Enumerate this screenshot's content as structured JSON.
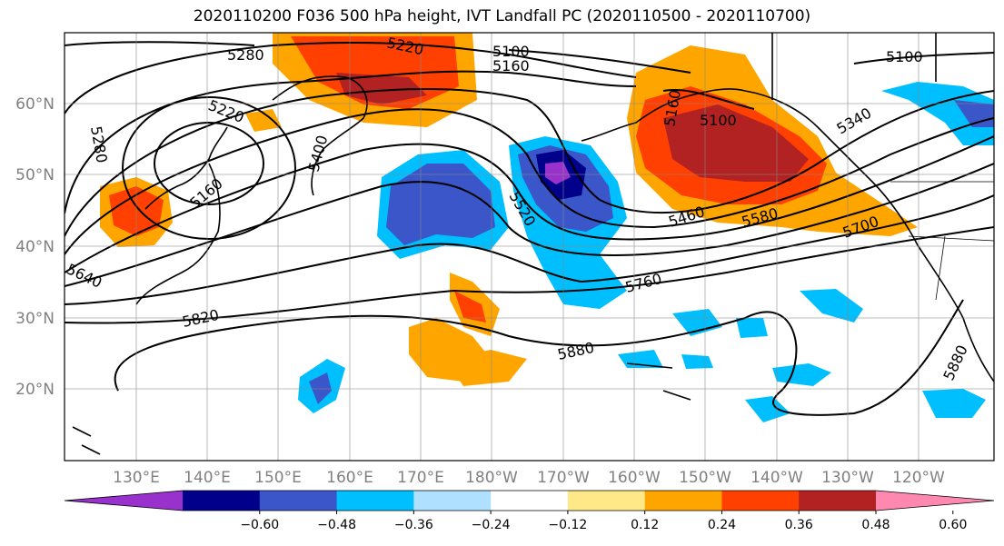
{
  "title": "2020110200 F036 500 hPa height, IVT Landfall PC (2020110500 - 2020110700)",
  "lat_ticks": [
    "60°N",
    "50°N",
    "40°N",
    "30°N",
    "20°N"
  ],
  "lon_ticks": [
    "130°E",
    "140°E",
    "150°E",
    "160°E",
    "170°E",
    "180°W",
    "170°W",
    "160°W",
    "150°W",
    "140°W",
    "130°W",
    "120°W"
  ],
  "contour_labels": [
    "5280",
    "5220",
    "5220",
    "5100",
    "5160",
    "5100",
    "5160",
    "5100",
    "5340",
    "5280",
    "5160",
    "5400",
    "5520",
    "5460",
    "5580",
    "5700",
    "5640",
    "5760",
    "5820",
    "5880",
    "5880"
  ],
  "colorbar": {
    "colors": [
      "#9932cc",
      "#00008b",
      "#3a56c8",
      "#00bfff",
      "#b0e0ff",
      "#ffffff",
      "#ffe888",
      "#ffa500",
      "#ff4000",
      "#b22222",
      "#ff88b0"
    ],
    "labels": [
      "−0.60",
      "−0.48",
      "−0.36",
      "−0.24",
      "−0.12",
      "0.12",
      "0.24",
      "0.36",
      "0.48",
      "0.60"
    ]
  }
}
